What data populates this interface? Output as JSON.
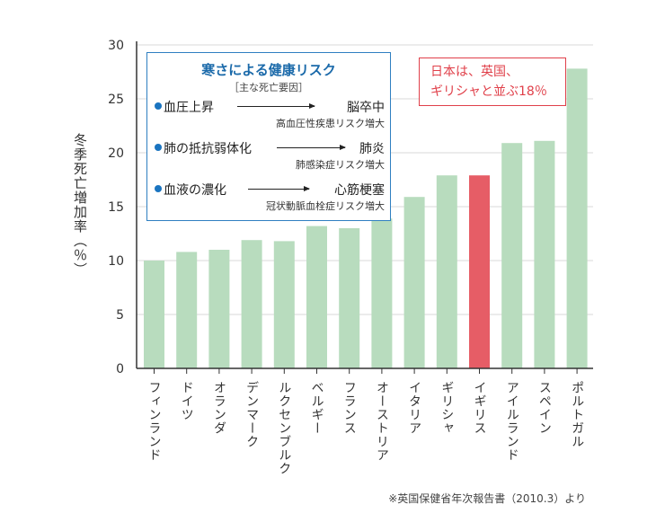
{
  "chart_data": {
    "type": "bar",
    "categories": [
      "フィンランド",
      "ドイツ",
      "オランダ",
      "デンマーク",
      "ルクセンブルク",
      "ベルギー",
      "フランス",
      "オーストリア",
      "イタリア",
      "ギリシャ",
      "イギリス",
      "アイルランド",
      "スペイン",
      "ポルトガル"
    ],
    "values": [
      10,
      10.8,
      11,
      11.9,
      11.8,
      13.2,
      13,
      13.9,
      15.9,
      17.9,
      17.9,
      20.9,
      21.1,
      27.8
    ],
    "highlight": "イギリス",
    "ylabel": "冬季死亡増加率（％）",
    "ylim": [
      0,
      30
    ],
    "yticks": [
      0,
      5,
      10,
      15,
      20,
      25,
      30
    ],
    "grid": true,
    "colors": {
      "bar": "#b8dcbe",
      "highlight": "#e65d66",
      "grid": "#d9d9d9",
      "axis": "#333333"
    }
  },
  "risk_box": {
    "title": "寒さによる健康リスク",
    "subtitle": "［主な死亡要因］",
    "items": [
      {
        "cause": "血圧上昇",
        "result": "脳卒中",
        "detail": "高血圧性疾患リスク増大"
      },
      {
        "cause": "肺の抵抗弱体化",
        "result": "肺炎",
        "detail": "肺感染症リスク増大"
      },
      {
        "cause": "血液の濃化",
        "result": "心筋梗塞",
        "detail": "冠状動脈血栓症リスク増大"
      }
    ]
  },
  "note": {
    "line1": "日本は、英国、",
    "line2": "ギリシャと並ぶ18％"
  },
  "source": "※英国保健省年次報告書（2010.3）より"
}
